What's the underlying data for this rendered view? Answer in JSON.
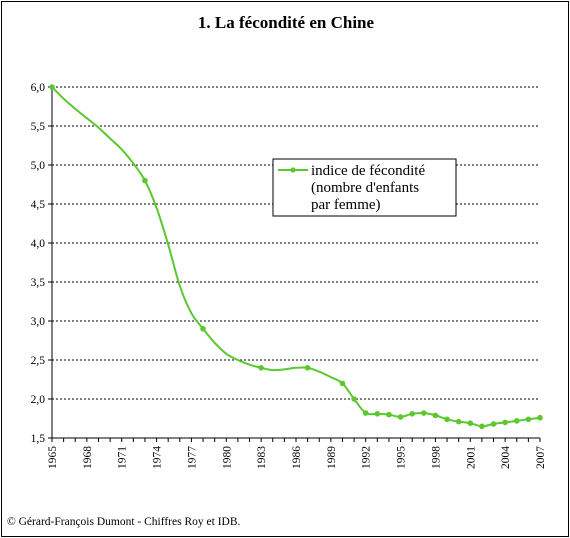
{
  "chart_data": {
    "type": "line",
    "title": "1. La fécondité en Chine",
    "xlabel": "",
    "ylabel": "",
    "xlim": [
      1965,
      2007
    ],
    "ylim": [
      1.5,
      6.0
    ],
    "y_ticks": [
      "1,5",
      "2,0",
      "2,5",
      "3,0",
      "3,5",
      "4,0",
      "4,5",
      "5,0",
      "5,5",
      "6,0"
    ],
    "x_ticks": [
      "1965",
      "1968",
      "1971",
      "1974",
      "1977",
      "1980",
      "1983",
      "1986",
      "1989",
      "1992",
      "1995",
      "1998",
      "2001",
      "2004",
      "2007"
    ],
    "grid": "horizontal dotted",
    "legend_position": "center-right",
    "color": "#5cc72e",
    "series": [
      {
        "name": "indice de fécondité (nombre d'enfants par femme)",
        "legend_lines": [
          "indice de fécondité",
          "(nombre d'enfants",
          "par femme)"
        ],
        "points": [
          [
            1965,
            6.0
          ],
          [
            1973,
            4.8
          ],
          [
            1978,
            2.9
          ],
          [
            1983,
            2.4
          ],
          [
            1987,
            2.4
          ],
          [
            1990,
            2.2
          ],
          [
            1991,
            2.0
          ],
          [
            1992,
            1.82
          ],
          [
            1993,
            1.81
          ],
          [
            1994,
            1.8
          ],
          [
            1995,
            1.77
          ],
          [
            1996,
            1.81
          ],
          [
            1997,
            1.82
          ],
          [
            1998,
            1.79
          ],
          [
            1999,
            1.74
          ],
          [
            2000,
            1.71
          ],
          [
            2001,
            1.69
          ],
          [
            2002,
            1.65
          ],
          [
            2003,
            1.68
          ],
          [
            2004,
            1.7
          ],
          [
            2005,
            1.72
          ],
          [
            2006,
            1.74
          ],
          [
            2007,
            1.76
          ]
        ],
        "curve_points": [
          [
            1965,
            6.0
          ],
          [
            1966,
            5.85
          ],
          [
            1967,
            5.72
          ],
          [
            1968,
            5.6
          ],
          [
            1969,
            5.48
          ],
          [
            1970,
            5.34
          ],
          [
            1971,
            5.2
          ],
          [
            1972,
            5.02
          ],
          [
            1973,
            4.8
          ],
          [
            1974,
            4.45
          ],
          [
            1975,
            3.98
          ],
          [
            1976,
            3.45
          ],
          [
            1977,
            3.1
          ],
          [
            1978,
            2.9
          ],
          [
            1979,
            2.72
          ],
          [
            1980,
            2.58
          ],
          [
            1981,
            2.5
          ],
          [
            1982,
            2.44
          ],
          [
            1983,
            2.4
          ],
          [
            1984,
            2.37
          ],
          [
            1985,
            2.38
          ],
          [
            1986,
            2.4
          ],
          [
            1987,
            2.4
          ],
          [
            1988,
            2.35
          ],
          [
            1989,
            2.28
          ],
          [
            1990,
            2.2
          ],
          [
            1991,
            2.0
          ],
          [
            1992,
            1.82
          ],
          [
            1993,
            1.81
          ],
          [
            1994,
            1.8
          ],
          [
            1995,
            1.77
          ],
          [
            1996,
            1.81
          ],
          [
            1997,
            1.82
          ],
          [
            1998,
            1.79
          ],
          [
            1999,
            1.74
          ],
          [
            2000,
            1.71
          ],
          [
            2001,
            1.69
          ],
          [
            2002,
            1.65
          ],
          [
            2003,
            1.68
          ],
          [
            2004,
            1.7
          ],
          [
            2005,
            1.72
          ],
          [
            2006,
            1.74
          ],
          [
            2007,
            1.76
          ]
        ]
      }
    ]
  },
  "source": "© Gérard-François Dumont - Chiffres Roy et IDB."
}
